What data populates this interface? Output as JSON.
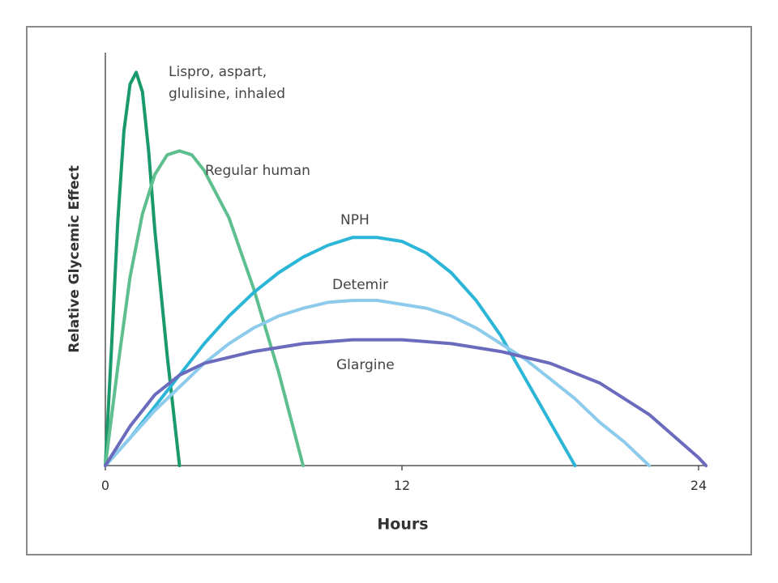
{
  "chart_data": {
    "type": "line",
    "x_label": "Hours",
    "y_label": "Relative Glycemic Effect",
    "xlim": [
      0,
      24
    ],
    "xticks": [
      0,
      12,
      24
    ],
    "ylim": [
      0,
      105
    ],
    "grid": false,
    "series": [
      {
        "name": "Lispro, aspart, glulisine, inhaled",
        "color": "#1a9a6a",
        "x": [
          0,
          0.25,
          0.5,
          0.75,
          1,
          1.25,
          1.5,
          1.75,
          2,
          2.5,
          3
        ],
        "values": [
          0,
          30,
          62,
          85,
          97,
          100,
          95,
          80,
          60,
          28,
          0
        ]
      },
      {
        "name": "Regular human",
        "color": "#5dbf8e",
        "x": [
          0,
          0.5,
          1,
          1.5,
          2,
          2.5,
          3,
          3.5,
          4,
          5,
          6,
          7,
          8
        ],
        "values": [
          0,
          25,
          48,
          64,
          74,
          79,
          80,
          79,
          75,
          63,
          45,
          24,
          0
        ]
      },
      {
        "name": "NPH",
        "color": "#2bb5d6",
        "x": [
          0,
          1,
          2,
          3,
          4,
          5,
          6,
          7,
          8,
          9,
          10,
          11,
          12,
          13,
          14,
          15,
          16,
          17,
          18,
          19
        ],
        "values": [
          0,
          7,
          15,
          23,
          31,
          38,
          44,
          49,
          53,
          56,
          58,
          58,
          57,
          54,
          49,
          42,
          33,
          22,
          11,
          0
        ]
      },
      {
        "name": "Detemir",
        "color": "#8ccbeb",
        "x": [
          0,
          1,
          2,
          3,
          4,
          5,
          6,
          7,
          8,
          9,
          10,
          11,
          12,
          13,
          14,
          15,
          16,
          17,
          18,
          19,
          20,
          21,
          22
        ],
        "values": [
          0,
          7,
          14,
          20,
          26,
          31,
          35,
          38,
          40,
          41.5,
          42,
          42,
          41,
          40,
          38,
          35,
          31,
          27,
          22,
          17,
          11,
          6,
          0
        ]
      },
      {
        "name": "Glargine",
        "color": "#6b6bbd",
        "x": [
          0,
          1,
          2,
          3,
          4,
          6,
          8,
          10,
          12,
          14,
          16,
          18,
          20,
          22,
          24,
          24.3
        ],
        "values": [
          0,
          10,
          18,
          23,
          26,
          29,
          31,
          32,
          32,
          31,
          29,
          26,
          21,
          13,
          2,
          0
        ]
      }
    ]
  }
}
